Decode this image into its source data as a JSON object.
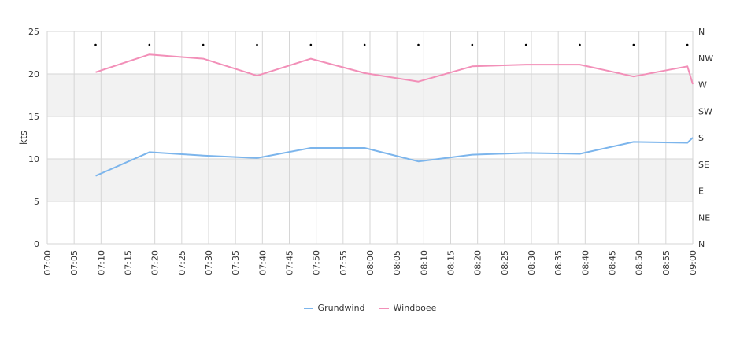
{
  "chart_data": {
    "type": "line",
    "ylabel": "kts",
    "ylim": [
      0,
      25
    ],
    "yticks": [
      "0",
      "5",
      "10",
      "15",
      "20",
      "25"
    ],
    "right_axis_labels": [
      "N",
      "NE",
      "E",
      "SE",
      "S",
      "SW",
      "W",
      "NW",
      "N"
    ],
    "x_tick_labels": [
      "07:00",
      "07:05",
      "07:10",
      "07:15",
      "07:20",
      "07:25",
      "07:30",
      "07:35",
      "07:40",
      "07:45",
      "07:50",
      "07:55",
      "08:00",
      "08:05",
      "08:10",
      "08:15",
      "08:20",
      "08:25",
      "08:30",
      "08:35",
      "08:40",
      "08:45",
      "08:50",
      "08:55",
      "09:00"
    ],
    "x": [
      "07:09",
      "07:19",
      "07:29",
      "07:39",
      "07:49",
      "07:59",
      "08:09",
      "08:19",
      "08:29",
      "08:39",
      "08:49",
      "08:59",
      "09:00"
    ],
    "series": [
      {
        "name": "Grundwind",
        "color": "#7cb5ec",
        "values": [
          8.0,
          10.8,
          10.4,
          10.1,
          11.3,
          11.3,
          9.7,
          10.5,
          10.7,
          10.6,
          12.0,
          11.9,
          12.5
        ]
      },
      {
        "name": "Windboee",
        "color": "#f28fb8",
        "values": [
          20.2,
          22.3,
          21.8,
          19.8,
          21.8,
          20.1,
          19.1,
          20.9,
          21.1,
          21.1,
          19.7,
          20.9,
          18.8
        ]
      }
    ],
    "direction_marker_times": [
      "07:09",
      "07:19",
      "07:29",
      "07:39",
      "07:49",
      "07:59",
      "08:09",
      "08:19",
      "08:29",
      "08:39",
      "08:49",
      "08:59"
    ],
    "bands": [
      [
        5,
        10
      ],
      [
        15,
        20
      ]
    ],
    "band_color": "#f2f2f2",
    "grid_color": "#d6d6d6",
    "legend_position": "bottom"
  }
}
